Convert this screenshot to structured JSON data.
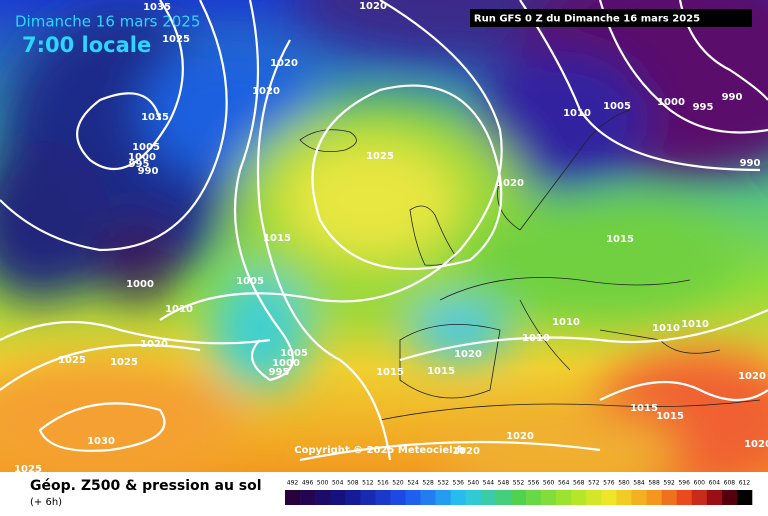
{
  "header": {
    "date": "Dimanche 16 mars 2025",
    "time": "7:00 locale",
    "run": "Run GFS 0 Z du Dimanche 16 mars 2025"
  },
  "copyright": "Copyright © 2025 Meteociel.fr",
  "legend": {
    "title": "Géop. Z500 & pression au sol",
    "lead": "(+ 6h)"
  },
  "colorbar": {
    "ticks": [
      492,
      496,
      500,
      504,
      508,
      512,
      516,
      520,
      524,
      528,
      532,
      536,
      540,
      544,
      548,
      552,
      556,
      560,
      564,
      568,
      572,
      576,
      580,
      584,
      588,
      592,
      596,
      600,
      604,
      608,
      612
    ]
  },
  "isobar_labels": [
    "1035",
    "1020",
    "1025",
    "1020",
    "1020",
    "1035",
    "1005",
    "1000",
    "995",
    "990",
    "1025",
    "1010",
    "1005",
    "1000",
    "995",
    "990",
    "990",
    "1020",
    "1015",
    "1015",
    "1000",
    "1005",
    "1010",
    "1020",
    "1025",
    "1025",
    "1005",
    "1000",
    "995",
    "1010",
    "1010",
    "1010",
    "1010",
    "1020",
    "1015",
    "1015",
    "1030",
    "1020",
    "1020",
    "1025",
    "1020",
    "1015",
    "1015",
    "1020"
  ]
}
